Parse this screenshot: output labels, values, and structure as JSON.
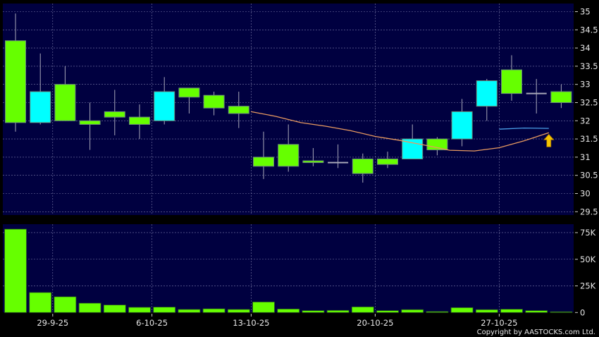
{
  "chart_data": [
    {
      "type": "candlestick",
      "title": "",
      "ylim": [
        29.5,
        35
      ],
      "yticks": [
        "35",
        "34.5",
        "34",
        "33.5",
        "33",
        "32.5",
        "32",
        "31.5",
        "31",
        "30.5",
        "30",
        "29.5"
      ],
      "ytick_values": [
        35,
        34.5,
        34,
        33.5,
        33,
        32.5,
        32,
        31.5,
        31,
        30.5,
        30,
        29.5
      ],
      "grid": true,
      "colors": {
        "background": "#000040",
        "up": "#00ffff",
        "down": "#66ff00",
        "doji": "#a8a8b8",
        "ma": "#e89a60",
        "ma2": "#4aa0e8",
        "arrow": "#f5c400"
      },
      "candles": [
        {
          "o": 34.2,
          "h": 34.95,
          "l": 31.7,
          "c": 31.95
        },
        {
          "o": 31.95,
          "h": 33.85,
          "l": 31.9,
          "c": 32.8
        },
        {
          "o": 33.0,
          "h": 33.5,
          "l": 32.0,
          "c": 32.0
        },
        {
          "o": 32.0,
          "h": 32.5,
          "l": 31.2,
          "c": 31.9
        },
        {
          "o": 32.25,
          "h": 32.85,
          "l": 31.6,
          "c": 32.1
        },
        {
          "o": 32.1,
          "h": 32.45,
          "l": 31.5,
          "c": 31.9
        },
        {
          "o": 32.0,
          "h": 33.2,
          "l": 31.9,
          "c": 32.8
        },
        {
          "o": 32.9,
          "h": 32.9,
          "l": 32.2,
          "c": 32.65
        },
        {
          "o": 32.7,
          "h": 32.8,
          "l": 32.15,
          "c": 32.35
        },
        {
          "o": 32.4,
          "h": 32.8,
          "l": 31.8,
          "c": 32.2
        },
        {
          "o": 31.0,
          "h": 31.7,
          "l": 30.4,
          "c": 30.75
        },
        {
          "o": 31.35,
          "h": 31.9,
          "l": 30.6,
          "c": 30.75
        },
        {
          "o": 30.9,
          "h": 31.25,
          "l": 30.75,
          "c": 30.85
        },
        {
          "o": 30.85,
          "h": 31.35,
          "l": 30.7,
          "c": 30.85
        },
        {
          "o": 30.95,
          "h": 31.1,
          "l": 30.3,
          "c": 30.55
        },
        {
          "o": 30.95,
          "h": 31.15,
          "l": 30.7,
          "c": 30.8
        },
        {
          "o": 30.95,
          "h": 31.9,
          "l": 30.95,
          "c": 31.5
        },
        {
          "o": 31.5,
          "h": 31.55,
          "l": 31.05,
          "c": 31.2
        },
        {
          "o": 31.5,
          "h": 32.6,
          "l": 31.3,
          "c": 32.25
        },
        {
          "o": 32.4,
          "h": 33.15,
          "l": 32.0,
          "c": 33.1
        },
        {
          "o": 33.4,
          "h": 33.8,
          "l": 32.55,
          "c": 32.75
        },
        {
          "o": 32.75,
          "h": 33.15,
          "l": 32.2,
          "c": 32.75
        },
        {
          "o": 32.8,
          "h": 33.0,
          "l": 32.35,
          "c": 32.5
        }
      ],
      "ma_line": [
        null,
        null,
        null,
        null,
        null,
        null,
        null,
        null,
        null,
        null,
        32.25,
        32.12,
        31.95,
        31.85,
        31.73,
        31.57,
        31.46,
        31.33,
        31.19,
        31.17,
        31.26,
        31.45,
        31.67
      ],
      "ma_line2": [
        null,
        null,
        null,
        null,
        null,
        null,
        null,
        null,
        null,
        null,
        null,
        null,
        null,
        null,
        null,
        null,
        null,
        null,
        null,
        null,
        31.77,
        31.8,
        31.79
      ],
      "signal": {
        "type": "up-arrow",
        "index": 23
      }
    },
    {
      "type": "bar",
      "title": "",
      "ylim": [
        0,
        80000
      ],
      "yticks": [
        "75K",
        "50K",
        "25K",
        "0"
      ],
      "ytick_values": [
        75000,
        50000,
        25000,
        0
      ],
      "grid": true,
      "values": [
        78300,
        18800,
        14800,
        8800,
        7100,
        4900,
        5100,
        2900,
        3500,
        2900,
        9900,
        3300,
        1800,
        2000,
        5300,
        1800,
        2700,
        900,
        4600,
        2700,
        3100,
        1800,
        700
      ]
    }
  ],
  "x_axis": {
    "labels": [
      {
        "text": "29-9-25",
        "between": 2
      },
      {
        "text": "6-10-25",
        "between": 6
      },
      {
        "text": "13-10-25",
        "between": 10
      },
      {
        "text": "20-10-25",
        "between": 15
      },
      {
        "text": "27-10-25",
        "between": 20
      }
    ]
  },
  "copyright": "Copyright by AASTOCKS.com Ltd."
}
